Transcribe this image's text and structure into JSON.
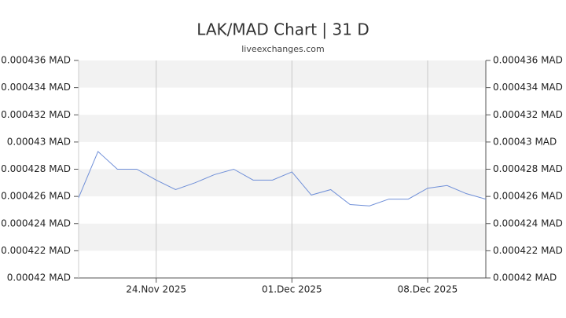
{
  "chart_data": {
    "type": "line",
    "title": "LAK/MAD Chart | 31 D",
    "subtitle": "liveexchanges.com",
    "x": [
      "2025-11-20",
      "2025-11-21",
      "2025-11-22",
      "2025-11-23",
      "2025-11-24",
      "2025-11-25",
      "2025-11-26",
      "2025-11-27",
      "2025-11-28",
      "2025-11-29",
      "2025-11-30",
      "2025-12-01",
      "2025-12-02",
      "2025-12-03",
      "2025-12-04",
      "2025-12-05",
      "2025-12-06",
      "2025-12-07",
      "2025-12-08",
      "2025-12-09",
      "2025-12-10",
      "2025-12-11"
    ],
    "values": [
      0.0004259,
      0.0004293,
      0.000428,
      0.000428,
      0.0004272,
      0.0004265,
      0.000427,
      0.0004276,
      0.000428,
      0.0004272,
      0.0004272,
      0.0004278,
      0.0004261,
      0.0004265,
      0.0004254,
      0.0004253,
      0.0004258,
      0.0004258,
      0.0004266,
      0.0004268,
      0.0004262,
      0.0004258
    ],
    "color": "#6f8fd8",
    "xlim": [
      "2025-11-20",
      "2025-12-11"
    ],
    "xticks": [
      {
        "value": "2025-11-24",
        "label": "24.Nov 2025"
      },
      {
        "value": "2025-12-01",
        "label": "01.Dec 2025"
      },
      {
        "value": "2025-12-08",
        "label": "08.Dec 2025"
      }
    ],
    "ylim": [
      0.00042,
      0.000436
    ],
    "yticks": [
      {
        "value": 0.00042,
        "label": "0.00042 MAD"
      },
      {
        "value": 0.000422,
        "label": "0.000422 MAD"
      },
      {
        "value": 0.000424,
        "label": "0.000424 MAD"
      },
      {
        "value": 0.000426,
        "label": "0.000426 MAD"
      },
      {
        "value": 0.000428,
        "label": "0.000428 MAD"
      },
      {
        "value": 0.00043,
        "label": "0.00043 MAD"
      },
      {
        "value": 0.000432,
        "label": "0.000432 MAD"
      },
      {
        "value": 0.000434,
        "label": "0.000434 MAD"
      },
      {
        "value": 0.000436,
        "label": "0.000436 MAD"
      }
    ],
    "grid": "bands",
    "right_axis": true
  }
}
